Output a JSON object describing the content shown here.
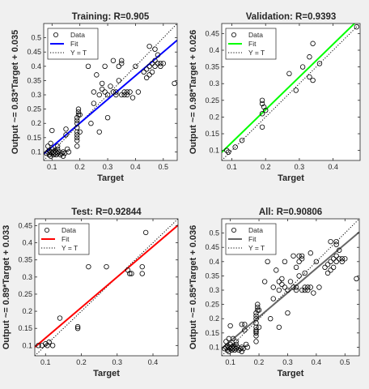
{
  "chart_data": [
    {
      "type": "scatter",
      "title": "Training: R=0.905",
      "xlabel": "Target",
      "ylabel": "Output ~= 0.83*Target + 0.035",
      "xlim": [
        0.07,
        0.55
      ],
      "ylim": [
        0.07,
        0.55
      ],
      "xticks": [
        "0.1",
        "0.2",
        "0.3",
        "0.4",
        "0.5"
      ],
      "yticks": [
        "0.1",
        "0.15",
        "0.2",
        "0.25",
        "0.3",
        "0.35",
        "0.4",
        "0.45",
        "0.5"
      ],
      "fit_color": "#0000ff",
      "fit": {
        "slope": 0.83,
        "intercept": 0.035
      },
      "legend": [
        "Data",
        "Fit",
        "Y = T"
      ],
      "legend_position": "top-left",
      "points": [
        [
          0.08,
          0.095
        ],
        [
          0.085,
          0.1
        ],
        [
          0.09,
          0.09
        ],
        [
          0.09,
          0.105
        ],
        [
          0.095,
          0.1
        ],
        [
          0.095,
          0.085
        ],
        [
          0.1,
          0.095
        ],
        [
          0.1,
          0.11
        ],
        [
          0.105,
          0.1
        ],
        [
          0.105,
          0.09
        ],
        [
          0.11,
          0.095
        ],
        [
          0.11,
          0.105
        ],
        [
          0.115,
          0.09
        ],
        [
          0.115,
          0.1
        ],
        [
          0.12,
          0.095
        ],
        [
          0.12,
          0.11
        ],
        [
          0.125,
          0.1
        ],
        [
          0.13,
          0.09
        ],
        [
          0.135,
          0.095
        ],
        [
          0.14,
          0.1
        ],
        [
          0.14,
          0.085
        ],
        [
          0.145,
          0.095
        ],
        [
          0.085,
          0.12
        ],
        [
          0.095,
          0.13
        ],
        [
          0.1,
          0.175
        ],
        [
          0.12,
          0.12
        ],
        [
          0.15,
          0.16
        ],
        [
          0.15,
          0.18
        ],
        [
          0.155,
          0.11
        ],
        [
          0.16,
          0.1
        ],
        [
          0.19,
          0.12
        ],
        [
          0.19,
          0.14
        ],
        [
          0.19,
          0.15
        ],
        [
          0.19,
          0.16
        ],
        [
          0.19,
          0.17
        ],
        [
          0.19,
          0.185
        ],
        [
          0.19,
          0.2
        ],
        [
          0.19,
          0.21
        ],
        [
          0.19,
          0.22
        ],
        [
          0.195,
          0.23
        ],
        [
          0.195,
          0.24
        ],
        [
          0.195,
          0.25
        ],
        [
          0.2,
          0.23
        ],
        [
          0.2,
          0.17
        ],
        [
          0.23,
          0.4
        ],
        [
          0.24,
          0.2
        ],
        [
          0.25,
          0.27
        ],
        [
          0.25,
          0.31
        ],
        [
          0.26,
          0.37
        ],
        [
          0.27,
          0.3
        ],
        [
          0.27,
          0.17
        ],
        [
          0.28,
          0.32
        ],
        [
          0.28,
          0.34
        ],
        [
          0.29,
          0.31
        ],
        [
          0.29,
          0.4
        ],
        [
          0.3,
          0.3
        ],
        [
          0.3,
          0.22
        ],
        [
          0.31,
          0.33
        ],
        [
          0.32,
          0.31
        ],
        [
          0.32,
          0.42
        ],
        [
          0.33,
          0.31
        ],
        [
          0.33,
          0.3
        ],
        [
          0.34,
          0.35
        ],
        [
          0.34,
          0.4
        ],
        [
          0.35,
          0.41
        ],
        [
          0.35,
          0.3
        ],
        [
          0.35,
          0.42
        ],
        [
          0.36,
          0.31
        ],
        [
          0.36,
          0.3
        ],
        [
          0.37,
          0.31
        ],
        [
          0.37,
          0.3
        ],
        [
          0.38,
          0.31
        ],
        [
          0.39,
          0.29
        ],
        [
          0.4,
          0.4
        ],
        [
          0.41,
          0.31
        ],
        [
          0.43,
          0.38
        ],
        [
          0.44,
          0.39
        ],
        [
          0.44,
          0.36
        ],
        [
          0.45,
          0.37
        ],
        [
          0.45,
          0.4
        ],
        [
          0.46,
          0.41
        ],
        [
          0.46,
          0.38
        ],
        [
          0.47,
          0.42
        ],
        [
          0.47,
          0.4
        ],
        [
          0.48,
          0.41
        ],
        [
          0.48,
          0.44
        ],
        [
          0.49,
          0.4
        ],
        [
          0.49,
          0.41
        ],
        [
          0.5,
          0.41
        ],
        [
          0.45,
          0.47
        ],
        [
          0.47,
          0.46
        ],
        [
          0.54,
          0.34
        ]
      ]
    },
    {
      "type": "scatter",
      "title": "Validation: R=0.9393",
      "xlabel": "Target",
      "ylabel": "Output ~= 0.98*Target + 0.026",
      "xlim": [
        0.07,
        0.48
      ],
      "ylim": [
        0.07,
        0.48
      ],
      "xticks": [
        "0.1",
        "0.2",
        "0.3",
        "0.4"
      ],
      "yticks": [
        "0.1",
        "0.15",
        "0.2",
        "0.25",
        "0.3",
        "0.35",
        "0.4",
        "0.45"
      ],
      "fit_color": "#00ff00",
      "fit": {
        "slope": 0.98,
        "intercept": 0.026
      },
      "legend": [
        "Data",
        "Fit",
        "Y = T"
      ],
      "legend_position": "top-left",
      "points": [
        [
          0.085,
          0.1
        ],
        [
          0.09,
          0.095
        ],
        [
          0.11,
          0.11
        ],
        [
          0.13,
          0.13
        ],
        [
          0.19,
          0.17
        ],
        [
          0.19,
          0.21
        ],
        [
          0.19,
          0.24
        ],
        [
          0.19,
          0.25
        ],
        [
          0.195,
          0.23
        ],
        [
          0.2,
          0.22
        ],
        [
          0.27,
          0.33
        ],
        [
          0.29,
          0.28
        ],
        [
          0.31,
          0.35
        ],
        [
          0.33,
          0.38
        ],
        [
          0.33,
          0.32
        ],
        [
          0.34,
          0.42
        ],
        [
          0.34,
          0.31
        ],
        [
          0.36,
          0.36
        ],
        [
          0.47,
          0.47
        ]
      ]
    },
    {
      "type": "scatter",
      "title": "Test: R=0.92844",
      "xlabel": "Target",
      "ylabel": "Output ~= 0.89*Target + 0.033",
      "xlim": [
        0.07,
        0.47
      ],
      "ylim": [
        0.07,
        0.47
      ],
      "xticks": [
        "0.1",
        "0.2",
        "0.3",
        "0.4"
      ],
      "yticks": [
        "0.1",
        "0.15",
        "0.2",
        "0.25",
        "0.3",
        "0.35",
        "0.4",
        "0.45"
      ],
      "fit_color": "#ff0000",
      "fit": {
        "slope": 0.89,
        "intercept": 0.033
      },
      "legend": [
        "Data",
        "Fit",
        "Y = T"
      ],
      "legend_position": "top-left",
      "points": [
        [
          0.08,
          0.1
        ],
        [
          0.09,
          0.1
        ],
        [
          0.1,
          0.105
        ],
        [
          0.105,
          0.1
        ],
        [
          0.11,
          0.11
        ],
        [
          0.12,
          0.1
        ],
        [
          0.14,
          0.18
        ],
        [
          0.19,
          0.155
        ],
        [
          0.19,
          0.15
        ],
        [
          0.22,
          0.33
        ],
        [
          0.27,
          0.33
        ],
        [
          0.33,
          0.32
        ],
        [
          0.335,
          0.31
        ],
        [
          0.34,
          0.31
        ],
        [
          0.37,
          0.33
        ],
        [
          0.37,
          0.31
        ],
        [
          0.38,
          0.43
        ]
      ]
    },
    {
      "type": "scatter",
      "title": "All: R=0.90806",
      "xlabel": "Target",
      "ylabel": "Output ~= 0.85*Target + 0.036",
      "xlim": [
        0.07,
        0.55
      ],
      "ylim": [
        0.07,
        0.55
      ],
      "xticks": [
        "0.1",
        "0.2",
        "0.3",
        "0.4",
        "0.5"
      ],
      "yticks": [
        "0.1",
        "0.15",
        "0.2",
        "0.25",
        "0.3",
        "0.35",
        "0.4",
        "0.45",
        "0.5"
      ],
      "fit_color": "#666666",
      "fit": {
        "slope": 0.85,
        "intercept": 0.036
      },
      "legend": [
        "Data",
        "Fit",
        "Y = T"
      ],
      "legend_position": "top-left",
      "points": [
        [
          0.08,
          0.095
        ],
        [
          0.085,
          0.1
        ],
        [
          0.09,
          0.09
        ],
        [
          0.09,
          0.105
        ],
        [
          0.095,
          0.1
        ],
        [
          0.095,
          0.085
        ],
        [
          0.1,
          0.095
        ],
        [
          0.1,
          0.11
        ],
        [
          0.105,
          0.1
        ],
        [
          0.105,
          0.09
        ],
        [
          0.11,
          0.095
        ],
        [
          0.11,
          0.105
        ],
        [
          0.115,
          0.09
        ],
        [
          0.115,
          0.1
        ],
        [
          0.12,
          0.095
        ],
        [
          0.12,
          0.11
        ],
        [
          0.125,
          0.1
        ],
        [
          0.13,
          0.09
        ],
        [
          0.135,
          0.095
        ],
        [
          0.14,
          0.1
        ],
        [
          0.14,
          0.085
        ],
        [
          0.145,
          0.095
        ],
        [
          0.085,
          0.12
        ],
        [
          0.095,
          0.13
        ],
        [
          0.1,
          0.175
        ],
        [
          0.12,
          0.12
        ],
        [
          0.15,
          0.16
        ],
        [
          0.15,
          0.18
        ],
        [
          0.155,
          0.11
        ],
        [
          0.16,
          0.1
        ],
        [
          0.11,
          0.13
        ],
        [
          0.14,
          0.18
        ],
        [
          0.19,
          0.12
        ],
        [
          0.19,
          0.14
        ],
        [
          0.19,
          0.15
        ],
        [
          0.19,
          0.16
        ],
        [
          0.19,
          0.17
        ],
        [
          0.19,
          0.185
        ],
        [
          0.19,
          0.2
        ],
        [
          0.19,
          0.21
        ],
        [
          0.19,
          0.22
        ],
        [
          0.195,
          0.23
        ],
        [
          0.195,
          0.24
        ],
        [
          0.195,
          0.25
        ],
        [
          0.2,
          0.23
        ],
        [
          0.2,
          0.17
        ],
        [
          0.19,
          0.155
        ],
        [
          0.23,
          0.4
        ],
        [
          0.24,
          0.2
        ],
        [
          0.25,
          0.27
        ],
        [
          0.25,
          0.31
        ],
        [
          0.26,
          0.37
        ],
        [
          0.27,
          0.3
        ],
        [
          0.27,
          0.17
        ],
        [
          0.28,
          0.32
        ],
        [
          0.28,
          0.34
        ],
        [
          0.29,
          0.31
        ],
        [
          0.29,
          0.4
        ],
        [
          0.3,
          0.3
        ],
        [
          0.3,
          0.22
        ],
        [
          0.31,
          0.33
        ],
        [
          0.27,
          0.33
        ],
        [
          0.22,
          0.33
        ],
        [
          0.32,
          0.31
        ],
        [
          0.32,
          0.42
        ],
        [
          0.33,
          0.31
        ],
        [
          0.33,
          0.3
        ],
        [
          0.34,
          0.35
        ],
        [
          0.34,
          0.4
        ],
        [
          0.35,
          0.41
        ],
        [
          0.35,
          0.3
        ],
        [
          0.35,
          0.42
        ],
        [
          0.36,
          0.31
        ],
        [
          0.36,
          0.3
        ],
        [
          0.37,
          0.31
        ],
        [
          0.37,
          0.3
        ],
        [
          0.38,
          0.31
        ],
        [
          0.39,
          0.29
        ],
        [
          0.4,
          0.4
        ],
        [
          0.41,
          0.31
        ],
        [
          0.33,
          0.38
        ],
        [
          0.34,
          0.42
        ],
        [
          0.36,
          0.36
        ],
        [
          0.38,
          0.43
        ],
        [
          0.43,
          0.38
        ],
        [
          0.44,
          0.39
        ],
        [
          0.44,
          0.36
        ],
        [
          0.45,
          0.37
        ],
        [
          0.45,
          0.4
        ],
        [
          0.46,
          0.41
        ],
        [
          0.46,
          0.38
        ],
        [
          0.47,
          0.42
        ],
        [
          0.47,
          0.4
        ],
        [
          0.48,
          0.41
        ],
        [
          0.48,
          0.44
        ],
        [
          0.49,
          0.4
        ],
        [
          0.49,
          0.41
        ],
        [
          0.5,
          0.41
        ],
        [
          0.45,
          0.47
        ],
        [
          0.47,
          0.46
        ],
        [
          0.54,
          0.34
        ],
        [
          0.47,
          0.47
        ]
      ]
    }
  ]
}
